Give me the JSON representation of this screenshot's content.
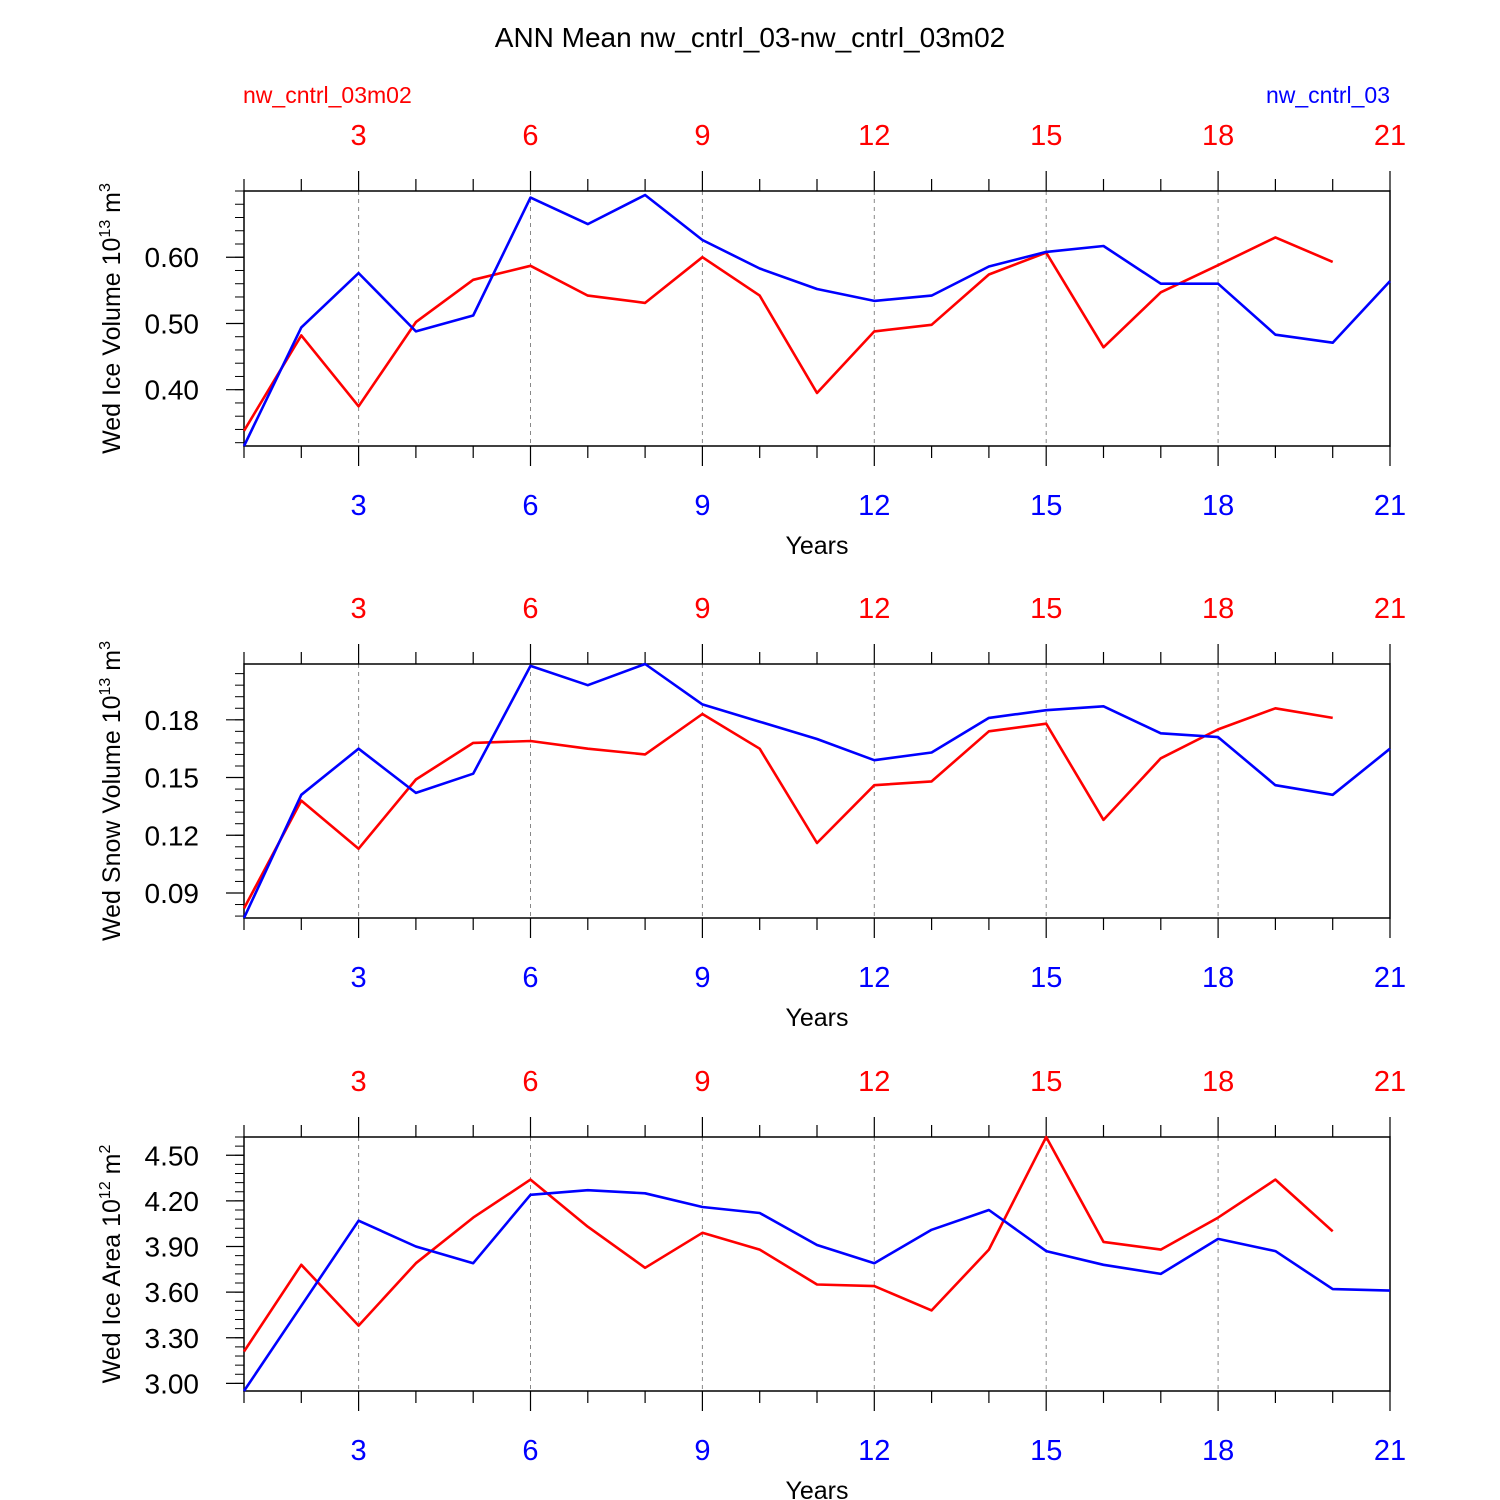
{
  "figure": {
    "title": "ANN Mean nw_cntrl_03-nw_cntrl_03m02",
    "left_label": "nw_cntrl_03m02",
    "right_label": "nw_cntrl_03"
  },
  "colors": {
    "red_series": "#ff0000",
    "blue_series": "#0000ff",
    "axis": "#000000",
    "grid": "#888888"
  },
  "chart_data": [
    {
      "type": "line",
      "ylabel": {
        "main": "Wed Ice Volume 10",
        "exp": "13",
        "unit": " m",
        "unit_exp": "3"
      },
      "xlabel": "Years",
      "xlim": [
        1,
        21
      ],
      "ylim": [
        0.315,
        0.7
      ],
      "xticks": [
        3,
        6,
        9,
        12,
        15,
        18,
        21
      ],
      "xtick_labels": [
        "3",
        "6",
        "9",
        "12",
        "15",
        "18",
        "21"
      ],
      "yticks": [
        0.4,
        0.5,
        0.6
      ],
      "ytick_labels": [
        "0.40",
        "0.50",
        "0.60"
      ],
      "yminor_step": 0.02,
      "series": [
        {
          "name": "nw_cntrl_03m02",
          "color": "#ff0000",
          "axis": "top",
          "x": [
            1,
            2,
            3,
            4,
            5,
            6,
            7,
            8,
            9,
            10,
            11,
            12,
            13,
            14,
            15,
            16,
            17,
            18,
            19,
            20
          ],
          "values": [
            0.338,
            0.482,
            0.375,
            0.502,
            0.566,
            0.587,
            0.542,
            0.531,
            0.6,
            0.542,
            0.395,
            0.488,
            0.498,
            0.574,
            0.607,
            0.464,
            0.547,
            0.588,
            0.63,
            0.593
          ]
        },
        {
          "name": "nw_cntrl_03",
          "color": "#0000ff",
          "axis": "bottom",
          "x": [
            1,
            2,
            3,
            4,
            5,
            6,
            7,
            8,
            9,
            10,
            11,
            12,
            13,
            14,
            15,
            16,
            17,
            18,
            19,
            20,
            21
          ],
          "values": [
            0.315,
            0.494,
            0.576,
            0.488,
            0.512,
            0.69,
            0.65,
            0.694,
            0.626,
            0.583,
            0.552,
            0.534,
            0.542,
            0.586,
            0.608,
            0.617,
            0.56,
            0.56,
            0.483,
            0.471,
            0.564
          ]
        }
      ]
    },
    {
      "type": "line",
      "ylabel": {
        "main": "Wed Snow Volume 10",
        "exp": "13",
        "unit": " m",
        "unit_exp": "3"
      },
      "xlabel": "Years",
      "xlim": [
        1,
        21
      ],
      "ylim": [
        0.077,
        0.209
      ],
      "xticks": [
        3,
        6,
        9,
        12,
        15,
        18,
        21
      ],
      "xtick_labels": [
        "3",
        "6",
        "9",
        "12",
        "15",
        "18",
        "21"
      ],
      "yticks": [
        0.09,
        0.12,
        0.15,
        0.18
      ],
      "ytick_labels": [
        "0.09",
        "0.12",
        "0.15",
        "0.18"
      ],
      "yminor_step": 0.006,
      "series": [
        {
          "name": "nw_cntrl_03m02",
          "color": "#ff0000",
          "axis": "top",
          "x": [
            1,
            2,
            3,
            4,
            5,
            6,
            7,
            8,
            9,
            10,
            11,
            12,
            13,
            14,
            15,
            16,
            17,
            18,
            19,
            20
          ],
          "values": [
            0.082,
            0.138,
            0.113,
            0.149,
            0.168,
            0.169,
            0.165,
            0.162,
            0.183,
            0.165,
            0.116,
            0.146,
            0.148,
            0.174,
            0.178,
            0.128,
            0.16,
            0.175,
            0.186,
            0.181
          ]
        },
        {
          "name": "nw_cntrl_03",
          "color": "#0000ff",
          "axis": "bottom",
          "x": [
            1,
            2,
            3,
            4,
            5,
            6,
            7,
            8,
            9,
            10,
            11,
            12,
            13,
            14,
            15,
            16,
            17,
            18,
            19,
            20,
            21
          ],
          "values": [
            0.077,
            0.141,
            0.165,
            0.142,
            0.152,
            0.208,
            0.198,
            0.209,
            0.188,
            0.179,
            0.17,
            0.159,
            0.163,
            0.181,
            0.185,
            0.187,
            0.173,
            0.171,
            0.146,
            0.141,
            0.165
          ]
        }
      ]
    },
    {
      "type": "line",
      "ylabel": {
        "main": "Wed Ice Area 10",
        "exp": "12",
        "unit": " m",
        "unit_exp": "2"
      },
      "xlabel": "Years",
      "xlim": [
        1,
        21
      ],
      "ylim": [
        2.95,
        4.62
      ],
      "xticks": [
        3,
        6,
        9,
        12,
        15,
        18,
        21
      ],
      "xtick_labels": [
        "3",
        "6",
        "9",
        "12",
        "15",
        "18",
        "21"
      ],
      "yticks": [
        3.0,
        3.3,
        3.6,
        3.9,
        4.2,
        4.5
      ],
      "ytick_labels": [
        "3.00",
        "3.30",
        "3.60",
        "3.90",
        "4.20",
        "4.50"
      ],
      "yminor_step": 0.06,
      "series": [
        {
          "name": "nw_cntrl_03m02",
          "color": "#ff0000",
          "axis": "top",
          "x": [
            1,
            2,
            3,
            4,
            5,
            6,
            7,
            8,
            9,
            10,
            11,
            12,
            13,
            14,
            15,
            16,
            17,
            18,
            19,
            20
          ],
          "values": [
            3.21,
            3.78,
            3.38,
            3.79,
            4.09,
            4.34,
            4.03,
            3.76,
            3.99,
            3.88,
            3.65,
            3.64,
            3.48,
            3.88,
            4.62,
            3.93,
            3.88,
            4.09,
            4.34,
            4.0
          ]
        },
        {
          "name": "nw_cntrl_03",
          "color": "#0000ff",
          "axis": "bottom",
          "x": [
            1,
            2,
            3,
            4,
            5,
            6,
            7,
            8,
            9,
            10,
            11,
            12,
            13,
            14,
            15,
            16,
            17,
            18,
            19,
            20,
            21
          ],
          "values": [
            2.95,
            3.51,
            4.07,
            3.9,
            3.79,
            4.24,
            4.27,
            4.25,
            4.16,
            4.12,
            3.91,
            3.79,
            4.01,
            4.14,
            3.87,
            3.78,
            3.72,
            3.95,
            3.87,
            3.62,
            3.61
          ]
        }
      ]
    }
  ]
}
